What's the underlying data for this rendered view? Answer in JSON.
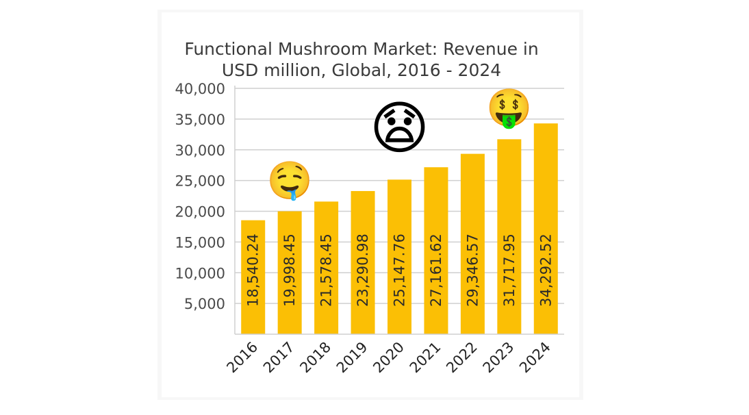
{
  "chart_data": {
    "type": "bar",
    "title_lines": [
      "Functional Mushroom Market: Revenue in",
      "USD million, Global, 2016 - 2024"
    ],
    "categories": [
      "2016",
      "2017",
      "2018",
      "2019",
      "2020",
      "2021",
      "2022",
      "2023",
      "2024"
    ],
    "values": [
      18540.24,
      19998.45,
      21578.45,
      23290.98,
      25147.76,
      27161.62,
      29346.57,
      31717.95,
      34292.52
    ],
    "data_labels": [
      "18,540.24",
      "19,998.45",
      "21,578.45",
      "23,290.98",
      "25,147.76",
      "27,161.62",
      "29,346.57",
      "31,717.95",
      "34,292.52"
    ],
    "yticks": [
      5000,
      10000,
      15000,
      20000,
      25000,
      30000,
      35000,
      40000
    ],
    "ytick_labels": [
      "5,000",
      "10,000",
      "15,000",
      "20,000",
      "25,000",
      "30,000",
      "35,000",
      "40,000"
    ],
    "ylim": [
      0,
      40000
    ],
    "xlabel": "",
    "ylabel": "",
    "grid": true,
    "legend": "none",
    "bar_color": "#fbbf05",
    "grid_color": "#cfcfcf"
  },
  "decorations": [
    {
      "emoji": "🤤",
      "name": "drooling-face-emoji",
      "near_category": "2017"
    },
    {
      "emoji": "😧",
      "name": "anguished-face-emoji",
      "near_category": "2020"
    },
    {
      "emoji": "🤑",
      "name": "money-mouth-face-emoji",
      "near_category": "2023"
    }
  ]
}
